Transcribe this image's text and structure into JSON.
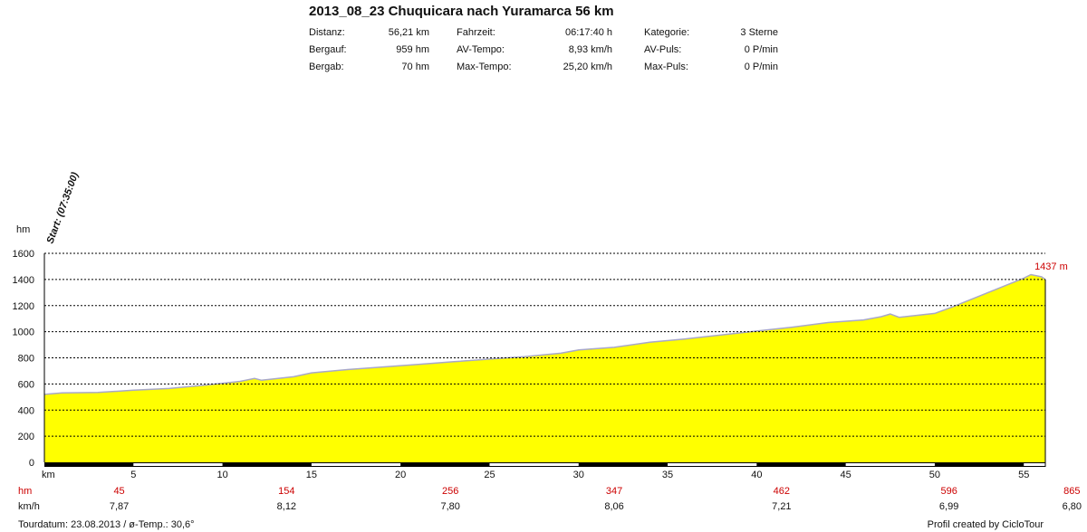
{
  "title": "2013_08_23 Chuquicara nach Yuramarca 56 km",
  "stats": [
    {
      "label": "Distanz:",
      "value": "56,21 km"
    },
    {
      "label": "Bergauf:",
      "value": "959 hm"
    },
    {
      "label": "Bergab:",
      "value": "70 hm"
    },
    {
      "label": "Fahrzeit:",
      "value": "06:17:40 h"
    },
    {
      "label": "AV-Tempo:",
      "value": "8,93 km/h"
    },
    {
      "label": "Max-Tempo:",
      "value": "25,20 km/h"
    },
    {
      "label": "Kategorie:",
      "value": "3 Sterne"
    },
    {
      "label": "AV-Puls:",
      "value": "0 P/min"
    },
    {
      "label": "Max-Puls:",
      "value": "0 P/min"
    }
  ],
  "footer": {
    "left": "Tourdatum: 23.08.2013  /  ø-Temp.: 30,6°",
    "right": "Profil created by CicloTour"
  },
  "colors": {
    "fill": "#ffff00",
    "line": "#a8a8c8",
    "grid": "#000000",
    "hm": "#cc0000"
  },
  "chart_data": {
    "type": "area",
    "ylabel": "hm",
    "xlabel": "km",
    "ylim": [
      0,
      1600
    ],
    "xlim": [
      0,
      56.21
    ],
    "yticks": [
      0,
      200,
      400,
      600,
      800,
      1000,
      1200,
      1400,
      1600
    ],
    "xticks": [
      5,
      10,
      15,
      20,
      25,
      30,
      35,
      40,
      45,
      50,
      55
    ],
    "grid": true,
    "start_label": "Start: (07:35:00)",
    "max_label": "1437 m",
    "max_point": {
      "x": 55.4,
      "y": 1437
    },
    "elevation": {
      "x": [
        0,
        1,
        3,
        5,
        7,
        9,
        11,
        11.8,
        12.2,
        14,
        15,
        17,
        19,
        21,
        23,
        25,
        27,
        29,
        30,
        32,
        34,
        36,
        38,
        40,
        42,
        44,
        46,
        47,
        47.5,
        48,
        50,
        51,
        53,
        55,
        55.4,
        56,
        56.21
      ],
      "y": [
        520,
        532,
        535,
        552,
        565,
        590,
        620,
        642,
        628,
        655,
        685,
        710,
        730,
        750,
        770,
        790,
        810,
        835,
        860,
        880,
        920,
        945,
        975,
        1005,
        1035,
        1070,
        1090,
        1115,
        1135,
        1110,
        1140,
        1190,
        1300,
        1410,
        1437,
        1420,
        1400
      ]
    },
    "hm_row_label": "hm",
    "hm_row": [
      {
        "x": 4.2,
        "value": "45"
      },
      {
        "x": 13.6,
        "value": "154"
      },
      {
        "x": 22.8,
        "value": "256"
      },
      {
        "x": 32.0,
        "value": "347"
      },
      {
        "x": 41.4,
        "value": "462"
      },
      {
        "x": 50.8,
        "value": "596"
      },
      {
        "x": 57.7,
        "value": "865"
      }
    ],
    "speed_row_label": "km/h",
    "speed_row": [
      {
        "x": 4.2,
        "value": "7,87"
      },
      {
        "x": 13.6,
        "value": "8,12"
      },
      {
        "x": 22.8,
        "value": "7,80"
      },
      {
        "x": 32.0,
        "value": "8,06"
      },
      {
        "x": 41.4,
        "value": "7,21"
      },
      {
        "x": 50.8,
        "value": "6,99"
      },
      {
        "x": 57.7,
        "value": "6,80"
      }
    ]
  }
}
